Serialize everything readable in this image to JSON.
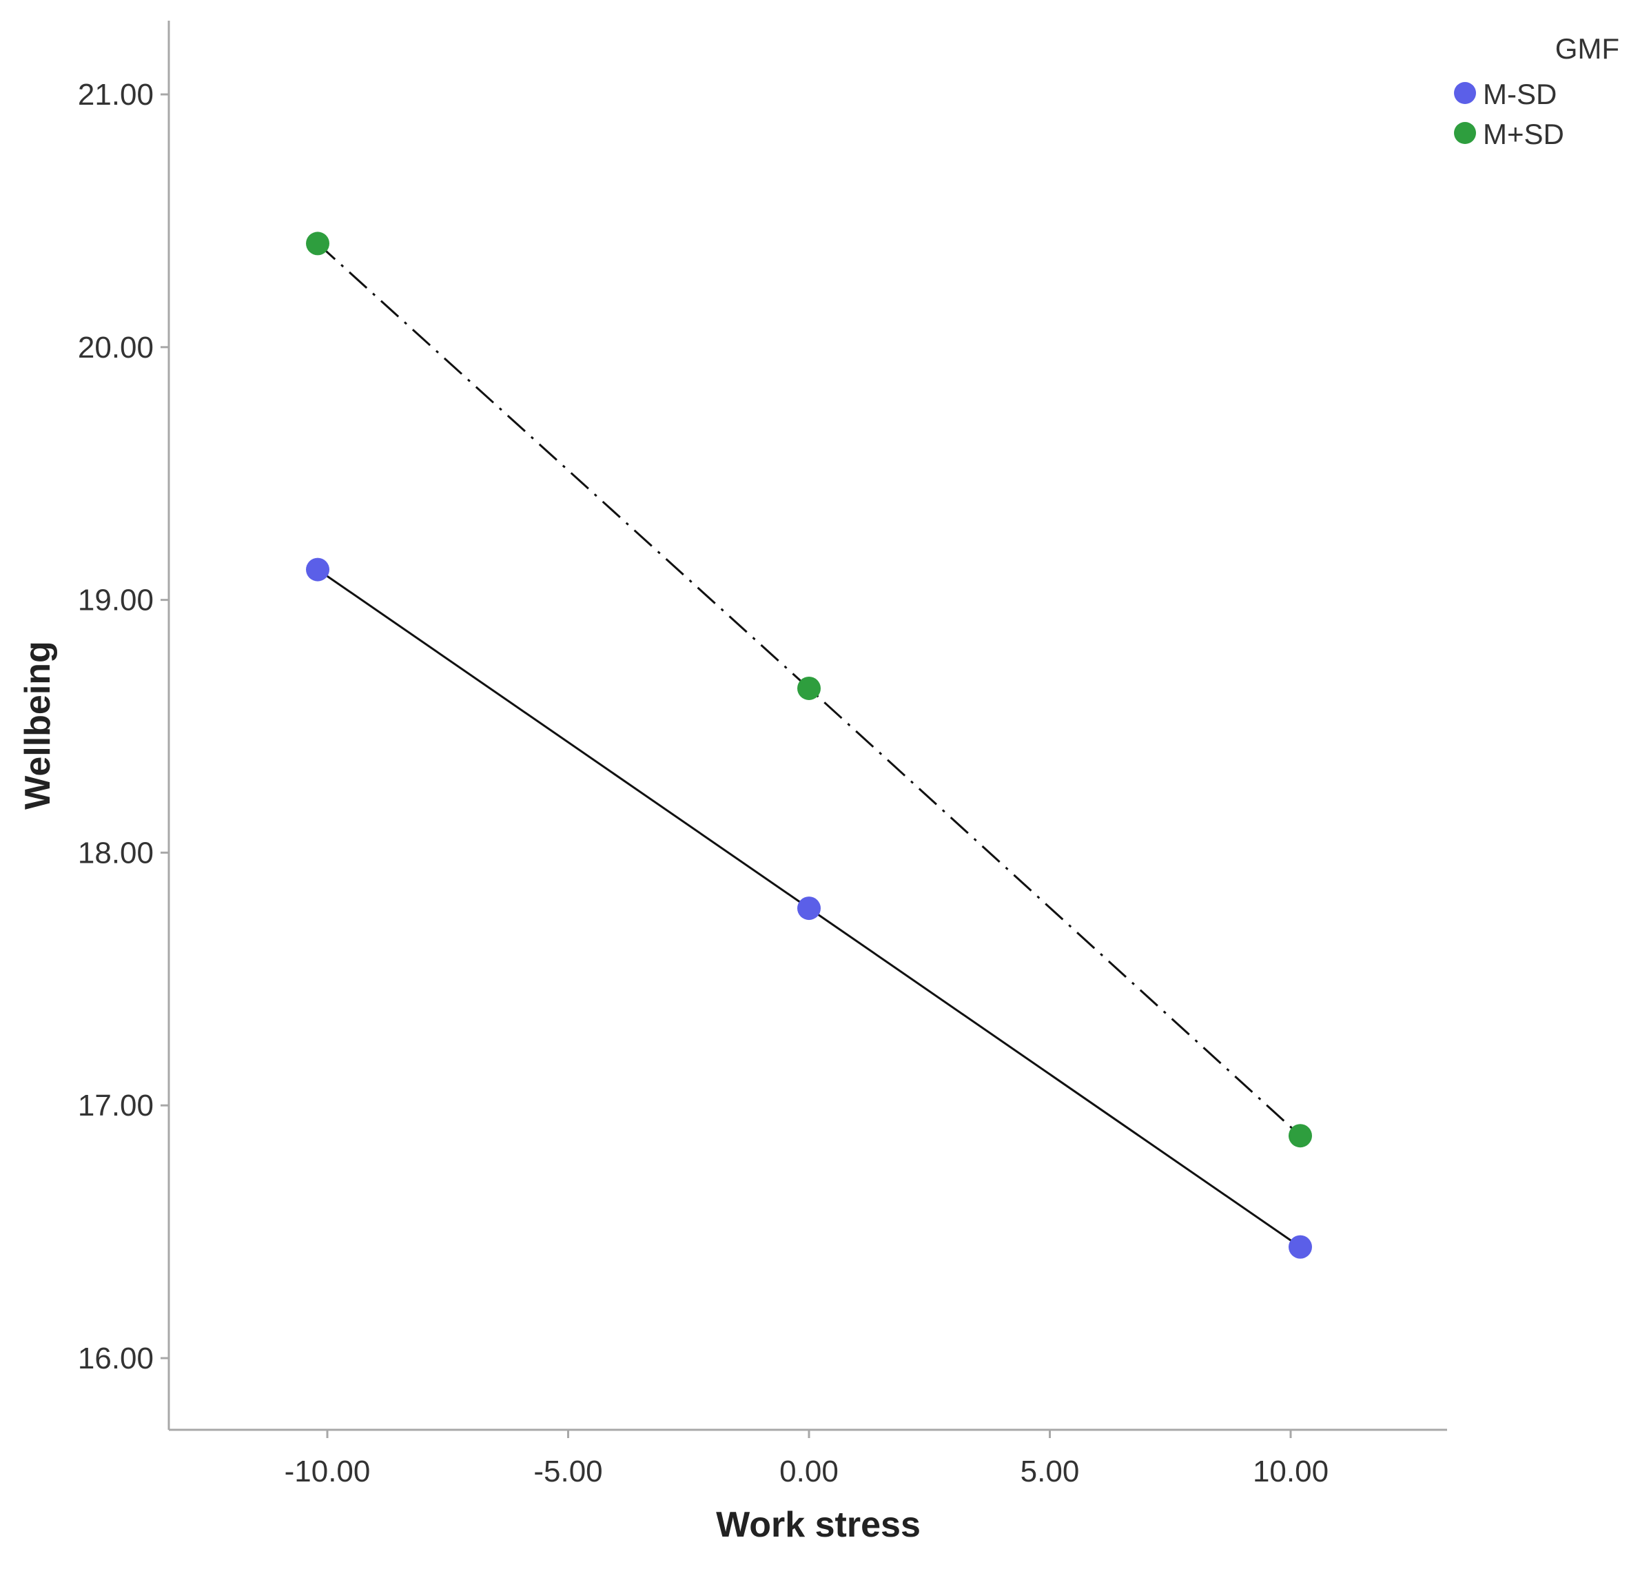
{
  "chart_data": {
    "type": "line",
    "title": "",
    "xlabel": "Work stress",
    "ylabel": "Wellbeing",
    "xlim": [
      -13.2,
      13.3
    ],
    "ylim": [
      15.7,
      21.3
    ],
    "x_ticks": [
      -10,
      -5,
      0,
      5,
      10
    ],
    "x_tick_labels": [
      "-10.00",
      "-5.00",
      "0.00",
      "5.00",
      "10.00"
    ],
    "y_ticks": [
      16,
      17,
      18,
      19,
      20,
      21
    ],
    "y_tick_labels": [
      "16.00",
      "17.00",
      "18.00",
      "19.00",
      "20.00",
      "21.00"
    ],
    "grid": false,
    "legend": {
      "title": "GMF",
      "placement": "top-right"
    },
    "series": [
      {
        "name": "M-SD",
        "color": "#5b5fe8",
        "line_color": "#111111",
        "line_style": "solid",
        "x": [
          -10.2,
          0,
          10.2
        ],
        "y": [
          19.12,
          17.78,
          16.44
        ]
      },
      {
        "name": "M+SD",
        "color": "#2e9e3e",
        "line_color": "#111111",
        "line_style": "dash-dot",
        "x": [
          -10.2,
          0,
          10.2
        ],
        "y": [
          20.41,
          18.65,
          16.88
        ]
      }
    ]
  }
}
